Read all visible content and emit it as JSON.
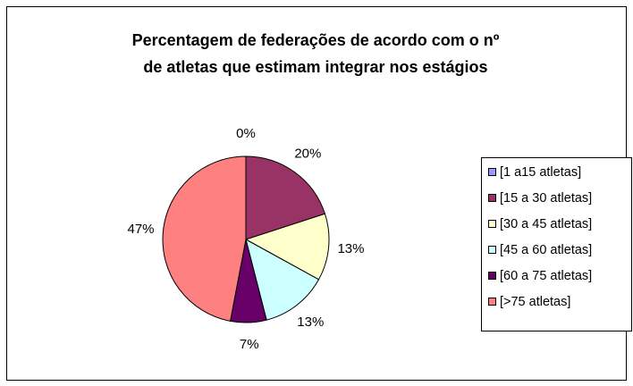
{
  "chart_data": {
    "type": "pie",
    "title": [
      "Percentagem de federações de acordo com o nº",
      "de atletas que estimam integrar nos estágios"
    ],
    "categories": [
      "[1 a15 atletas]",
      "[15 a 30 atletas]",
      "[30 a 45 atletas]",
      "[45 a 60 atletas]",
      "[60 a 75 atletas]",
      "[>75 atletas]"
    ],
    "values": [
      0,
      20,
      13,
      13,
      7,
      47
    ],
    "value_labels": [
      "0%",
      "20%",
      "13%",
      "13%",
      "7%",
      "47%"
    ],
    "colors": [
      "#9999ff",
      "#993366",
      "#ffffcc",
      "#ccffff",
      "#660066",
      "#ff8080"
    ],
    "legend": "right"
  }
}
